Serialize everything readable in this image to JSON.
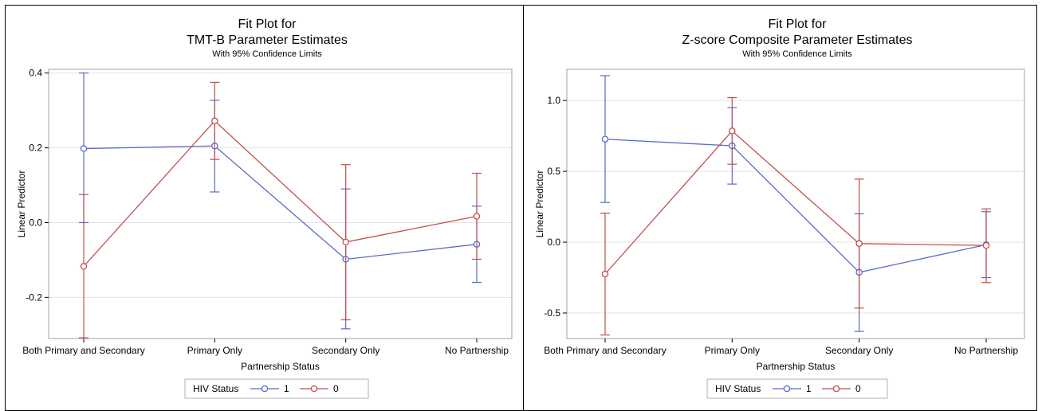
{
  "chart_data": [
    {
      "type": "line",
      "title": "Fit Plot for",
      "title2": "TMT-B Parameter Estimates",
      "subtitle": "With 95% Confidence Limits",
      "xlabel": "Partnership Status",
      "ylabel": "Linear Predictor",
      "categories": [
        "Both Primary and Secondary",
        "Primary Only",
        "Secondary Only",
        "No Partnership"
      ],
      "ylim": [
        -0.31,
        0.41
      ],
      "yticks": [
        -0.2,
        0.0,
        0.2,
        0.4
      ],
      "ytick_labels": [
        "-0.2",
        "0.0",
        "0.2",
        "0.4"
      ],
      "grid": true,
      "legend": {
        "title": "HIV Status",
        "placement": "bottom"
      },
      "series": [
        {
          "name": "1",
          "color": "#5B6BC4",
          "values": [
            0.198,
            0.205,
            -0.098,
            -0.058
          ],
          "lower": [
            0.0,
            0.082,
            -0.284,
            -0.16
          ],
          "upper": [
            0.4,
            0.327,
            0.09,
            0.044
          ]
        },
        {
          "name": "0",
          "color": "#C0504D",
          "values": [
            -0.117,
            0.272,
            -0.052,
            0.017
          ],
          "lower": [
            -0.308,
            0.169,
            -0.26,
            -0.098
          ],
          "upper": [
            0.075,
            0.375,
            0.155,
            0.132
          ]
        }
      ]
    },
    {
      "type": "line",
      "title": "Fit Plot for",
      "title2": "Z-score Composite Parameter Estimates",
      "subtitle": "With 95% Confidence Limits",
      "xlabel": "Partnership Status",
      "ylabel": "Linear Predictor",
      "categories": [
        "Both Primary and Secondary",
        "Primary Only",
        "Secondary Only",
        "No Partnership"
      ],
      "ylim": [
        -0.68,
        1.22
      ],
      "yticks": [
        -0.5,
        0.0,
        0.5,
        1.0
      ],
      "ytick_labels": [
        "-0.5",
        "0.0",
        "0.5",
        "1.0"
      ],
      "grid": true,
      "legend": {
        "title": "HIV Status",
        "placement": "bottom"
      },
      "series": [
        {
          "name": "1",
          "color": "#5B6BC4",
          "values": [
            0.727,
            0.68,
            -0.213,
            -0.018
          ],
          "lower": [
            0.28,
            0.41,
            -0.63,
            -0.25
          ],
          "upper": [
            1.175,
            0.95,
            0.2,
            0.215
          ]
        },
        {
          "name": "0",
          "color": "#C0504D",
          "values": [
            -0.225,
            0.785,
            -0.01,
            -0.023
          ],
          "lower": [
            -0.655,
            0.55,
            -0.465,
            -0.285
          ],
          "upper": [
            0.205,
            1.02,
            0.445,
            0.235
          ]
        }
      ]
    }
  ]
}
